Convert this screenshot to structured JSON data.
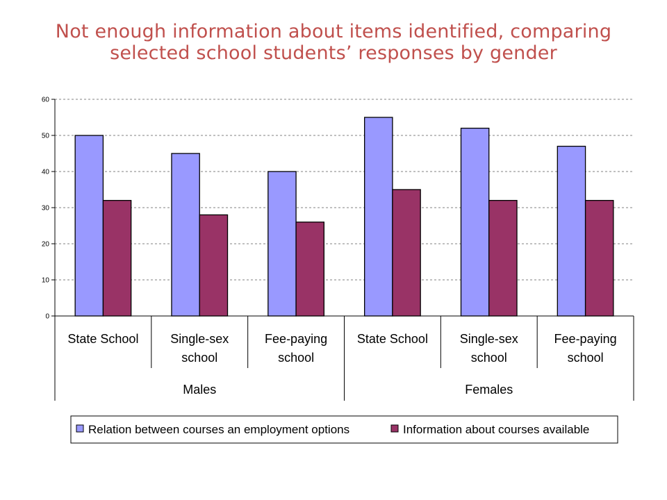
{
  "title": {
    "line1": "Not enough information about items identified, comparing",
    "line2": "selected school students’ responses by gender"
  },
  "chart_data": {
    "type": "bar",
    "ylim": [
      0,
      60
    ],
    "yticks": [
      0,
      10,
      20,
      30,
      40,
      50,
      60
    ],
    "grid": true,
    "groups": [
      {
        "label": "Males",
        "categories": [
          [
            "State School"
          ],
          [
            "Single-sex",
            "school"
          ],
          [
            "Fee-paying",
            "school"
          ]
        ]
      },
      {
        "label": "Females",
        "categories": [
          [
            "State School"
          ],
          [
            "Single-sex",
            "school"
          ],
          [
            "Fee-paying",
            "school"
          ]
        ]
      }
    ],
    "series": [
      {
        "name": "Relation between courses an employment options",
        "color": "#9999ff",
        "values": [
          50,
          45,
          40,
          55,
          52,
          47
        ]
      },
      {
        "name": "Information about courses available",
        "color": "#993366",
        "values": [
          32,
          28,
          26,
          35,
          32,
          32
        ]
      }
    ],
    "legend_position": "bottom"
  }
}
